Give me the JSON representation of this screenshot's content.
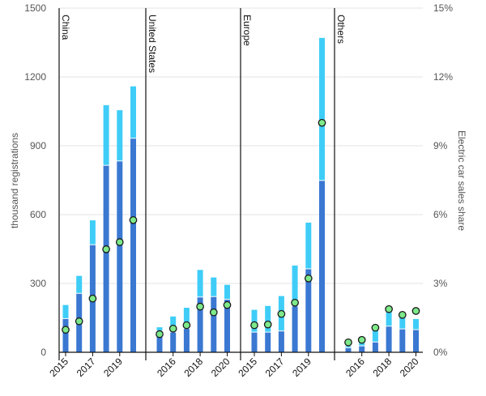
{
  "chart_data": {
    "type": "bar",
    "subtype": "stacked bar with line-axis markers, small multiples",
    "ylabel": "thousand registrations",
    "y2label": "Electric car sales share",
    "ylim": [
      0,
      1500
    ],
    "y2lim": [
      0,
      15
    ],
    "yticks": [
      "0",
      "300",
      "600",
      "900",
      "1200",
      "1500"
    ],
    "y2ticks": [
      "0%",
      "3%",
      "6%",
      "9%",
      "12%",
      "15%"
    ],
    "grid": true,
    "colors": {
      "series_dark": "#3a78d2",
      "series_light": "#3fcdf8",
      "share_marker": "#7de98a",
      "marker_outline": "#1a1a1a"
    },
    "years": [
      "2015",
      "2016",
      "2017",
      "2018",
      "2019",
      "2020"
    ],
    "panels": [
      {
        "name": "China",
        "tick_labels": [
          "2015",
          "2017",
          "2019"
        ],
        "series": [
          {
            "values": [
              145,
              255,
              467,
              813,
              832,
              931
            ]
          },
          {
            "values": [
              61,
              78,
              108,
              264,
              223,
              228
            ]
          }
        ],
        "totals": [
          206,
          333,
          575,
          1077,
          1055,
          1159
        ],
        "share": [
          0.98,
          1.35,
          2.34,
          4.49,
          4.8,
          5.76
        ]
      },
      {
        "name": "United States",
        "tick_labels": [
          "2016",
          "2018",
          "2020"
        ],
        "series": [
          {
            "values": [
              91,
              86,
              102,
              239,
              241,
              229
            ]
          },
          {
            "values": [
              18,
              70,
              92,
              120,
              85,
              65
            ]
          }
        ],
        "totals": [
          109,
          156,
          194,
          359,
          326,
          294
        ],
        "share": [
          0.79,
          1.03,
          1.18,
          1.99,
          1.74,
          2.06
        ]
      },
      {
        "name": "Europe",
        "tick_labels": [
          "2015",
          "2017",
          "2019"
        ],
        "series": [
          {
            "values": [
              86,
              86,
              91,
              200,
              362,
              747
            ]
          },
          {
            "values": [
              99,
              116,
              154,
              178,
              203,
              623
            ]
          }
        ],
        "totals": [
          185,
          202,
          245,
          378,
          565,
          1370
        ],
        "share": [
          1.18,
          1.21,
          1.67,
          2.16,
          3.22,
          10.0
        ]
      },
      {
        "name": "Others",
        "tick_labels": [
          "2016",
          "2018",
          "2020"
        ],
        "series": [
          {
            "values": [
              18,
              26,
              43,
              112,
              100,
              97
            ]
          },
          {
            "values": [
              8,
              15,
              57,
              70,
              59,
              48
            ]
          }
        ],
        "totals": [
          26,
          41,
          100,
          182,
          159,
          145
        ],
        "share": [
          0.43,
          0.54,
          1.07,
          1.88,
          1.63,
          1.8
        ]
      }
    ]
  }
}
